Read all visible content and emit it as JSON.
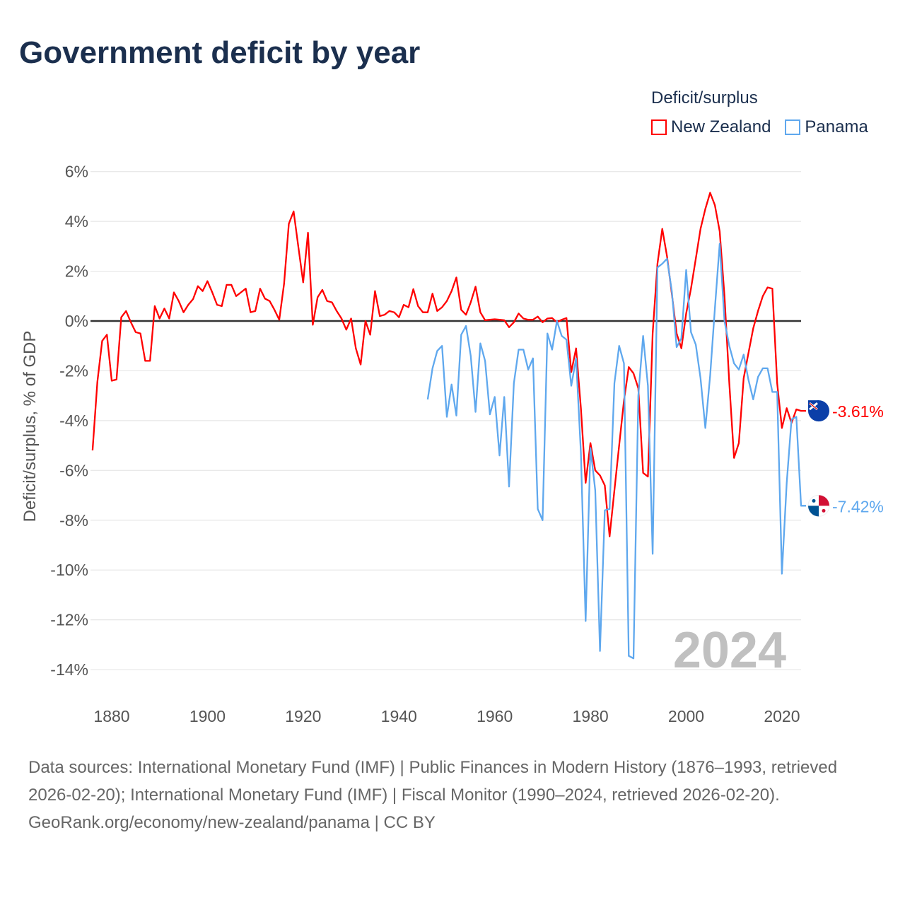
{
  "title": "Government deficit by year",
  "legend": {
    "title": "Deficit/surplus",
    "items": [
      {
        "name": "New Zealand",
        "color": "#ff0000"
      },
      {
        "name": "Panama",
        "color": "#5fa8ee"
      }
    ]
  },
  "footer": {
    "sources": "Data sources: International Monetary Fund (IMF) | Public Finances in Modern History (1876–1993, retrieved 2026-02-20); International Monetary Fund (IMF) | Fiscal Monitor (1990–2024, retrieved 2026-02-20).",
    "link": "GeoRank.org/economy/new-zealand/panama | CC BY"
  },
  "chart_data": {
    "type": "line",
    "title": "Government deficit by year",
    "ylabel": "Deficit/surplus, % of GDP",
    "xlabel": "",
    "ylim": [
      -14,
      6
    ],
    "xlim": [
      1876,
      2024
    ],
    "yticks": [
      6,
      4,
      2,
      0,
      -2,
      -4,
      -6,
      -8,
      -10,
      -12,
      -14
    ],
    "ytick_labels": [
      "6%",
      "4%",
      "2%",
      "0%",
      "-2%",
      "-4%",
      "-6%",
      "-8%",
      "-10%",
      "-12%",
      "-14%"
    ],
    "xticks": [
      1880,
      1900,
      1920,
      1940,
      1960,
      1980,
      2000,
      2020
    ],
    "xtick_labels": [
      "1880",
      "1900",
      "1920",
      "1940",
      "1960",
      "1980",
      "2000",
      "2020"
    ],
    "year_watermark": "2024",
    "grid": true,
    "legend_position": "top-right",
    "series": [
      {
        "name": "New Zealand",
        "color": "#ff0000",
        "start_year": 1876,
        "end_label": "-3.61%",
        "values": [
          -5.2,
          -2.45,
          -0.8,
          -0.55,
          -2.4,
          -2.35,
          0.15,
          0.4,
          -0.05,
          -0.45,
          -0.5,
          -1.6,
          -1.6,
          0.6,
          0.1,
          0.5,
          0.1,
          1.15,
          0.8,
          0.35,
          0.65,
          0.88,
          1.4,
          1.2,
          1.6,
          1.15,
          0.65,
          0.6,
          1.45,
          1.45,
          1.0,
          1.15,
          1.3,
          0.35,
          0.4,
          1.3,
          0.9,
          0.8,
          0.45,
          0.05,
          1.5,
          3.9,
          4.4,
          2.95,
          1.55,
          3.55,
          -0.15,
          0.95,
          1.25,
          0.8,
          0.75,
          0.4,
          0.1,
          -0.35,
          0.1,
          -1.1,
          -1.75,
          0.0,
          -0.55,
          1.2,
          0.2,
          0.25,
          0.4,
          0.35,
          0.15,
          0.65,
          0.55,
          1.28,
          0.6,
          0.35,
          0.35,
          1.1,
          0.4,
          0.55,
          0.8,
          1.2,
          1.75,
          0.45,
          0.25,
          0.75,
          1.38,
          0.35,
          0.03,
          0.05,
          0.07,
          0.05,
          0.03,
          -0.25,
          -0.05,
          0.3,
          0.1,
          0.05,
          0.05,
          0.18,
          -0.05,
          0.1,
          0.12,
          -0.05,
          0.05,
          0.12,
          -2.05,
          -1.1,
          -3.5,
          -6.5,
          -4.9,
          -6.0,
          -6.2,
          -6.6,
          -8.65,
          -6.8,
          -5.0,
          -3.2,
          -1.85,
          -2.1,
          -2.7,
          -6.1,
          -6.25,
          -0.5,
          2.3,
          3.7,
          2.6,
          1.1,
          -0.5,
          -1.1,
          0.3,
          1.3,
          2.5,
          3.7,
          4.5,
          5.15,
          4.65,
          3.6,
          1.0,
          -2.5,
          -5.5,
          -4.9,
          -2.3,
          -1.3,
          -0.3,
          0.4,
          1.0,
          1.35,
          1.3,
          -2.5,
          -4.3,
          -3.5,
          -4.1,
          -3.55,
          -3.61
        ]
      },
      {
        "name": "Panama",
        "color": "#5fa8ee",
        "start_year": 1946,
        "end_label": "-7.42%",
        "values": [
          -3.15,
          -1.9,
          -1.2,
          -1.0,
          -3.85,
          -2.55,
          -3.8,
          -0.55,
          -0.2,
          -1.4,
          -3.65,
          -0.9,
          -1.6,
          -3.75,
          -3.05,
          -5.4,
          -3.05,
          -6.65,
          -2.5,
          -1.15,
          -1.15,
          -1.95,
          -1.5,
          -7.55,
          -8.0,
          -0.5,
          -1.15,
          0.0,
          -0.6,
          -0.75,
          -2.6,
          -1.5,
          -5.3,
          -12.05,
          -5.1,
          -6.8,
          -13.25,
          -7.6,
          -7.55,
          -2.5,
          -1.0,
          -1.7,
          -13.45,
          -13.55,
          -3.0,
          -0.6,
          -2.6,
          -9.35,
          2.15,
          2.3,
          2.5,
          1.2,
          -1.05,
          -0.7,
          2.05,
          -0.45,
          -0.95,
          -2.3,
          -4.3,
          -2.2,
          0.5,
          3.1,
          0.0,
          -1.0,
          -1.7,
          -1.95,
          -1.35,
          -2.35,
          -3.15,
          -2.25,
          -1.9,
          -1.9,
          -2.85,
          -2.85,
          -10.15,
          -6.5,
          -3.95,
          -3.85,
          -7.42
        ]
      }
    ]
  }
}
